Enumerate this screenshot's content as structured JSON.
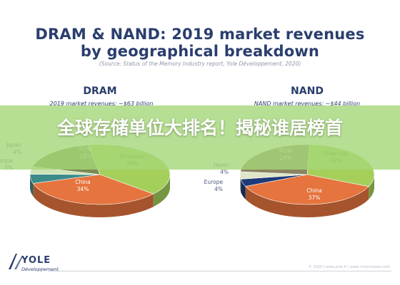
{
  "header": {
    "title_line1": "DRAM & NAND: 2019 market revenues",
    "title_line2": "by geographical breakdown",
    "source": "(Source: Status of the Memory Industry report, Yole Développement, 2020)"
  },
  "banner": {
    "text": "全球存储单位大排名！揭秘谁居榜首",
    "color": "#a5d778"
  },
  "logo": {
    "brand": "YOLE",
    "sub": "Développement"
  },
  "footer": {
    "right_text": "© 2020 | www.yole.fr | www.i-micronews.com"
  },
  "colors": {
    "title": "#2a3e6e",
    "china": "#e5743e",
    "americas": "#a4cf5a",
    "row": "#7a8a52",
    "europe_dram": "#3d8a8a",
    "japan_dram": "#cfe3b4",
    "europe_nand": "#1e3a78",
    "japan_nand": "#dfe6c8",
    "row_nand": "#8b8462"
  },
  "chart_data": [
    {
      "type": "pie",
      "title": "DRAM",
      "subtitle": "2019 market revenues: ~$63 billion",
      "slices": [
        {
          "label": "Americas",
          "value": 39,
          "display": "39%",
          "color": "#a4cf5a"
        },
        {
          "label": "China",
          "value": 34,
          "display": "34%",
          "color": "#e5743e"
        },
        {
          "label": "Europe",
          "value": 5,
          "display": "5%",
          "color": "#3d8a8a"
        },
        {
          "label": "Japan",
          "value": 4,
          "display": "4%",
          "color": "#cfe3b4"
        },
        {
          "label": "ROW",
          "value": 18,
          "display": "18%",
          "color": "#7a8a52"
        }
      ]
    },
    {
      "type": "pie",
      "title": "NAND",
      "subtitle": "NAND market revenues: ~$44 billion",
      "slices": [
        {
          "label": "Americas",
          "value": 31,
          "display": "31%",
          "color": "#a4cf5a"
        },
        {
          "label": "China",
          "value": 37,
          "display": "37%",
          "color": "#e5743e"
        },
        {
          "label": "Europe",
          "value": 4,
          "display": "4%",
          "color": "#1e3a78"
        },
        {
          "label": "Japan",
          "value": 4,
          "display": "4%",
          "color": "#dfe6c8"
        },
        {
          "label": "ROW",
          "value": 24,
          "display": "24%",
          "color": "#8b8462"
        }
      ]
    }
  ]
}
